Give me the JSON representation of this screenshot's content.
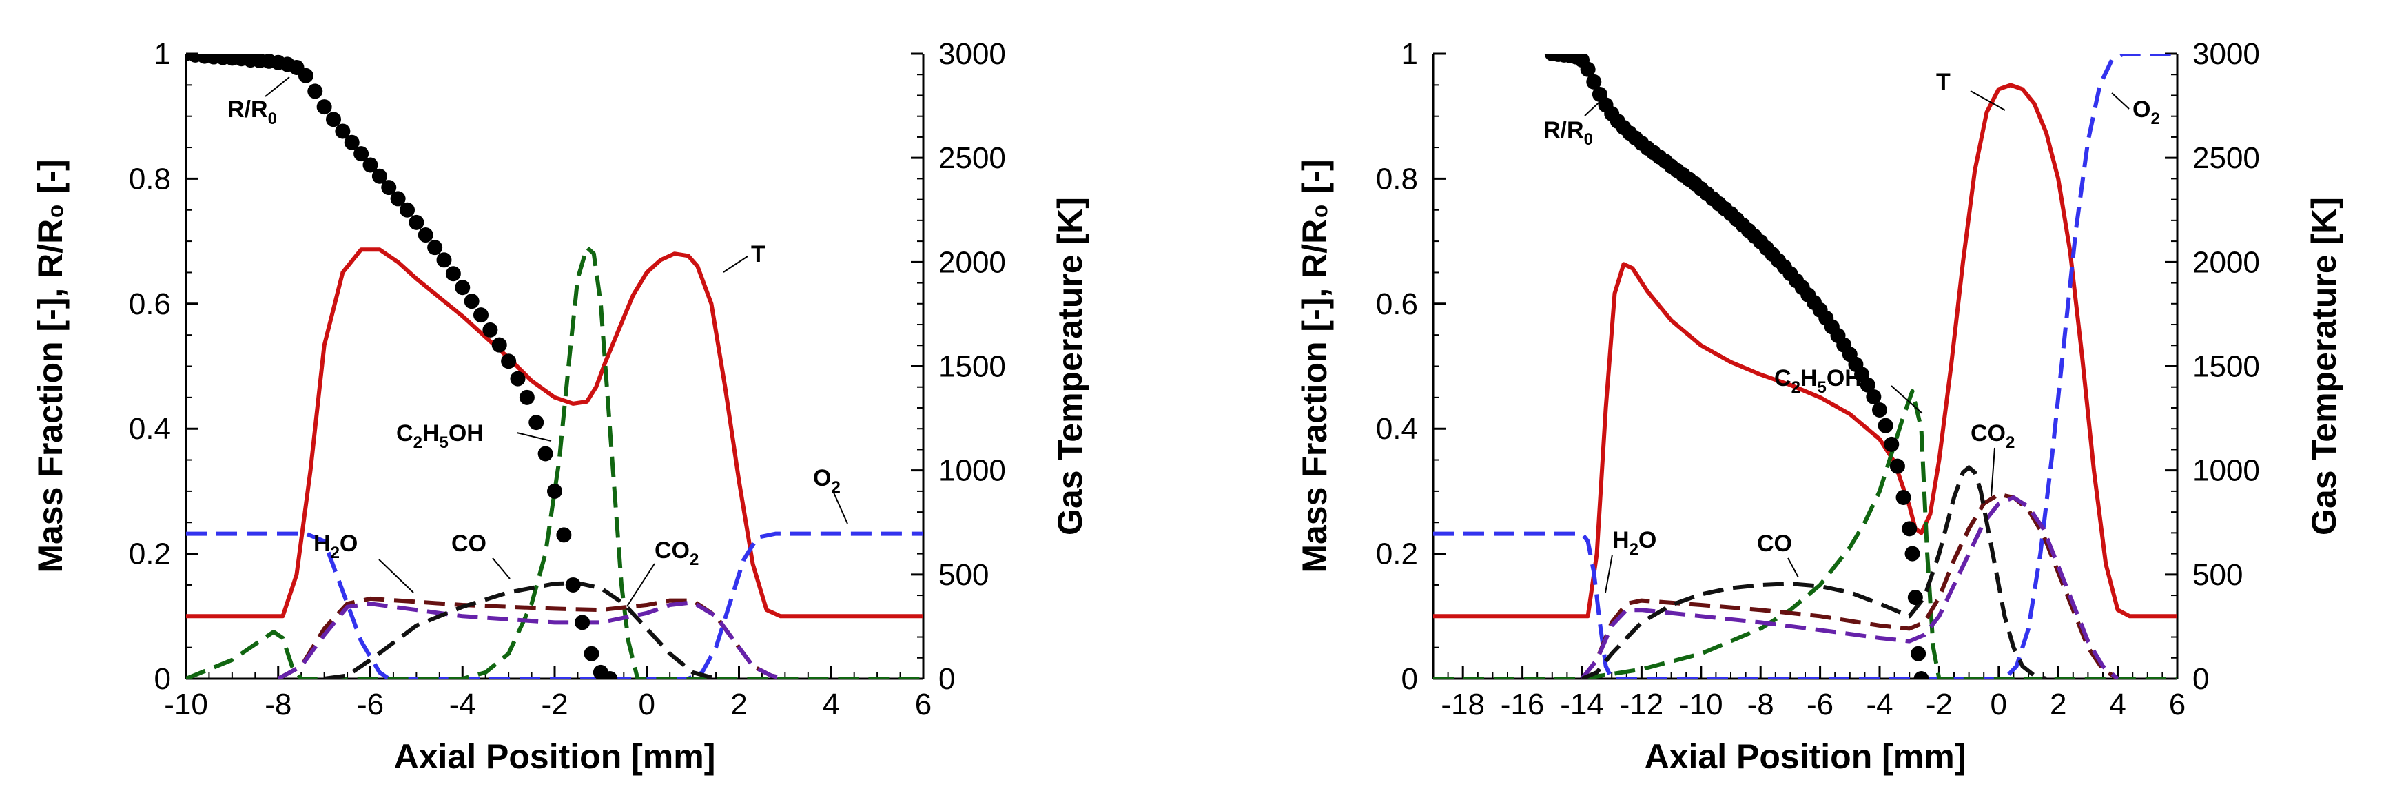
{
  "colors": {
    "T": "#cc1111",
    "O2": "#3333ee",
    "C2H5OH": "#116611",
    "H2O": "#661111",
    "CO": "#111111",
    "CO2": "#6622aa",
    "R": "#000000"
  },
  "chart_data": [
    {
      "type": "line",
      "xlabel": "Axial Position [mm]",
      "ylabel": "Mass Fraction [-], R/R₀ [-]",
      "y2label": "Gas Temperature [K]",
      "xlim": [
        -10,
        6
      ],
      "ylim": [
        0,
        1
      ],
      "y2lim": [
        0,
        3000
      ],
      "xticks": [
        "-10",
        "-8",
        "-6",
        "-4",
        "-2",
        "0",
        "2",
        "4",
        "6"
      ],
      "yticks": [
        "0",
        "0.2",
        "0.4",
        "0.6",
        "0.8",
        "1"
      ],
      "y2ticks": [
        "0",
        "500",
        "1000",
        "1500",
        "2000",
        "2500",
        "3000"
      ],
      "annotations": [
        {
          "id": "R",
          "base": "R/R",
          "sub": "0",
          "tail": ""
        },
        {
          "id": "T",
          "base": "T",
          "sub": "",
          "tail": ""
        },
        {
          "id": "C2H5OH",
          "base": "C",
          "sub": "2",
          "mid": "H",
          "sub2": "5",
          "tail": "OH"
        },
        {
          "id": "O2",
          "base": "O",
          "sub": "2",
          "tail": ""
        },
        {
          "id": "H2O",
          "base": "H",
          "sub": "2",
          "tail": "O"
        },
        {
          "id": "CO",
          "base": "CO",
          "sub": "",
          "tail": ""
        },
        {
          "id": "CO2",
          "base": "CO",
          "sub": "2",
          "tail": ""
        }
      ],
      "series": [
        {
          "name": "T",
          "axis": "y2",
          "style": "solid",
          "x": [
            -10,
            -7.9,
            -7.6,
            -7.3,
            -7.0,
            -6.6,
            -6.2,
            -5.8,
            -5.4,
            -5.0,
            -4.5,
            -4.0,
            -3.5,
            -3.0,
            -2.5,
            -2.0,
            -1.6,
            -1.3,
            -1.1,
            -0.9,
            -0.6,
            -0.3,
            0.0,
            0.3,
            0.6,
            0.9,
            1.1,
            1.4,
            1.7,
            2.0,
            2.3,
            2.6,
            2.9,
            3.2,
            6
          ],
          "y": [
            300,
            300,
            500,
            1000,
            1600,
            1950,
            2060,
            2060,
            2000,
            1920,
            1830,
            1740,
            1640,
            1540,
            1430,
            1350,
            1320,
            1330,
            1400,
            1520,
            1680,
            1840,
            1950,
            2010,
            2040,
            2030,
            1980,
            1800,
            1400,
            950,
            550,
            330,
            300,
            300,
            300
          ]
        },
        {
          "name": "O2",
          "axis": "y",
          "style": "dashed",
          "x": [
            -10,
            -7.4,
            -7.0,
            -6.6,
            -6.2,
            -5.8,
            -5.6,
            0.9,
            1.2,
            1.5,
            1.8,
            2.1,
            2.4,
            2.8,
            6
          ],
          "y": [
            0.232,
            0.232,
            0.22,
            0.14,
            0.06,
            0.01,
            0,
            0,
            0.01,
            0.05,
            0.12,
            0.19,
            0.226,
            0.232,
            0.232
          ]
        },
        {
          "name": "C2H5OH",
          "axis": "y",
          "style": "dashed",
          "x": [
            -10,
            -9.5,
            -9.0,
            -8.5,
            -8.1,
            -7.9,
            -7.7,
            -7.5,
            -4.0,
            -3.5,
            -3.0,
            -2.5,
            -2.2,
            -1.9,
            -1.7,
            -1.5,
            -1.3,
            -1.15,
            -1.0,
            -0.85,
            -0.7,
            -0.55,
            -0.4,
            -0.2,
            6
          ],
          "y": [
            0,
            0.015,
            0.03,
            0.055,
            0.075,
            0.065,
            0.02,
            0,
            0,
            0.01,
            0.04,
            0.12,
            0.2,
            0.35,
            0.5,
            0.64,
            0.69,
            0.68,
            0.6,
            0.45,
            0.3,
            0.15,
            0.06,
            0,
            0
          ]
        },
        {
          "name": "H2O",
          "axis": "y",
          "style": "dashed",
          "x": [
            -8.0,
            -7.5,
            -7.0,
            -6.5,
            -6.0,
            -5.0,
            -4.0,
            -3.0,
            -2.0,
            -1.0,
            0.0,
            0.5,
            1.0,
            1.5,
            2.0,
            2.3,
            2.7,
            3.0
          ],
          "y": [
            0,
            0.02,
            0.08,
            0.12,
            0.128,
            0.123,
            0.118,
            0.115,
            0.112,
            0.11,
            0.118,
            0.125,
            0.125,
            0.1,
            0.05,
            0.02,
            0.005,
            0
          ]
        },
        {
          "name": "CO2",
          "axis": "y",
          "style": "dashed",
          "x": [
            -8.0,
            -7.5,
            -7.0,
            -6.5,
            -6.0,
            -5.0,
            -4.0,
            -3.0,
            -2.0,
            -1.0,
            0.0,
            0.5,
            1.0,
            1.5,
            2.0,
            2.3,
            2.7,
            3.0
          ],
          "y": [
            0,
            0.02,
            0.07,
            0.115,
            0.12,
            0.11,
            0.1,
            0.095,
            0.09,
            0.09,
            0.105,
            0.118,
            0.122,
            0.1,
            0.05,
            0.02,
            0.005,
            0
          ]
        },
        {
          "name": "CO",
          "axis": "y",
          "style": "dashed",
          "x": [
            -7.0,
            -6.5,
            -6.0,
            -5.0,
            -4.0,
            -3.0,
            -2.0,
            -1.5,
            -1.0,
            -0.5,
            0.0,
            0.5,
            1.0,
            1.5
          ],
          "y": [
            0,
            0.005,
            0.03,
            0.085,
            0.115,
            0.138,
            0.152,
            0.153,
            0.145,
            0.12,
            0.08,
            0.04,
            0.01,
            0
          ]
        },
        {
          "name": "R/R0",
          "axis": "y",
          "style": "markers",
          "x": [
            -10.0,
            -9.8,
            -9.6,
            -9.4,
            -9.2,
            -9.0,
            -8.8,
            -8.6,
            -8.4,
            -8.2,
            -8.0,
            -7.8,
            -7.6,
            -7.4,
            -7.2,
            -7.0,
            -6.8,
            -6.6,
            -6.4,
            -6.2,
            -6.0,
            -5.8,
            -5.6,
            -5.4,
            -5.2,
            -5.0,
            -4.8,
            -4.6,
            -4.4,
            -4.2,
            -4.0,
            -3.8,
            -3.6,
            -3.4,
            -3.2,
            -3.0,
            -2.8,
            -2.6,
            -2.4,
            -2.2,
            -2.0,
            -1.8,
            -1.6,
            -1.4,
            -1.2,
            -1.0,
            -0.8
          ],
          "y": [
            1.0,
            0.998,
            0.996,
            0.995,
            0.994,
            0.993,
            0.992,
            0.99,
            0.989,
            0.988,
            0.986,
            0.983,
            0.978,
            0.965,
            0.94,
            0.915,
            0.895,
            0.876,
            0.858,
            0.84,
            0.822,
            0.804,
            0.786,
            0.768,
            0.75,
            0.73,
            0.71,
            0.69,
            0.67,
            0.648,
            0.626,
            0.604,
            0.582,
            0.558,
            0.534,
            0.508,
            0.48,
            0.45,
            0.41,
            0.36,
            0.3,
            0.23,
            0.15,
            0.09,
            0.04,
            0.01,
            0.0
          ]
        }
      ]
    },
    {
      "type": "line",
      "xlabel": "Axial Position [mm]",
      "ylabel": "Mass Fraction [-], R/R₀ [-]",
      "y2label": "Gas Temperature [K]",
      "xlim": [
        -19,
        6
      ],
      "ylim": [
        0,
        1
      ],
      "y2lim": [
        0,
        3000
      ],
      "xticks": [
        "-18",
        "-16",
        "-14",
        "-12",
        "-10",
        "-8",
        "-6",
        "-4",
        "-2",
        "0",
        "2",
        "4",
        "6"
      ],
      "yticks": [
        "0",
        "0.2",
        "0.4",
        "0.6",
        "0.8",
        "1"
      ],
      "y2ticks": [
        "0",
        "500",
        "1000",
        "1500",
        "2000",
        "2500",
        "3000"
      ],
      "annotations": [
        {
          "id": "R",
          "base": "R/R",
          "sub": "0",
          "tail": ""
        },
        {
          "id": "T",
          "base": "T",
          "sub": "",
          "tail": ""
        },
        {
          "id": "O2",
          "base": "O",
          "sub": "2",
          "tail": ""
        },
        {
          "id": "C2H5OH",
          "base": "C",
          "sub": "2",
          "mid": "H",
          "sub2": "5",
          "tail": "OH"
        },
        {
          "id": "CO2",
          "base": "CO",
          "sub": "2",
          "tail": ""
        },
        {
          "id": "H2O",
          "base": "H",
          "sub": "2",
          "tail": "O"
        },
        {
          "id": "CO",
          "base": "CO",
          "sub": "",
          "tail": ""
        }
      ],
      "series": [
        {
          "name": "T",
          "axis": "y2",
          "style": "solid",
          "x": [
            -19,
            -13.8,
            -13.5,
            -13.2,
            -12.9,
            -12.6,
            -12.3,
            -11.8,
            -11.0,
            -10.0,
            -9.0,
            -8.0,
            -7.0,
            -6.0,
            -5.0,
            -4.0,
            -3.5,
            -3.0,
            -2.8,
            -2.6,
            -2.3,
            -2.0,
            -1.6,
            -1.2,
            -0.8,
            -0.4,
            0.0,
            0.4,
            0.8,
            1.2,
            1.6,
            2.0,
            2.4,
            2.8,
            3.2,
            3.6,
            4.0,
            4.4,
            6
          ],
          "y": [
            300,
            300,
            600,
            1300,
            1850,
            1990,
            1970,
            1860,
            1720,
            1600,
            1520,
            1460,
            1410,
            1350,
            1270,
            1150,
            1040,
            830,
            720,
            700,
            790,
            1050,
            1500,
            2000,
            2440,
            2720,
            2830,
            2850,
            2830,
            2760,
            2620,
            2400,
            2050,
            1550,
            1000,
            550,
            330,
            300,
            300
          ]
        },
        {
          "name": "O2",
          "axis": "y",
          "style": "dashed",
          "x": [
            -19,
            -14.0,
            -13.8,
            -13.6,
            -13.4,
            -13.2,
            -13.0,
            0.2,
            0.6,
            1.0,
            1.4,
            1.8,
            2.2,
            2.6,
            3.0,
            3.4,
            3.8,
            4.2,
            6
          ],
          "y": [
            0.232,
            0.232,
            0.22,
            0.17,
            0.09,
            0.02,
            0,
            0,
            0.02,
            0.08,
            0.2,
            0.36,
            0.54,
            0.72,
            0.86,
            0.95,
            0.99,
            1.0,
            1.0
          ]
        },
        {
          "name": "C2H5OH",
          "axis": "y",
          "style": "dashed",
          "x": [
            -19,
            -14.0,
            -12.0,
            -10.0,
            -8.0,
            -7.0,
            -6.0,
            -5.0,
            -4.5,
            -4.0,
            -3.6,
            -3.2,
            -2.9,
            -2.6,
            -2.4,
            -2.2,
            -2.0,
            6
          ],
          "y": [
            0,
            0,
            0.015,
            0.04,
            0.08,
            0.11,
            0.15,
            0.21,
            0.25,
            0.3,
            0.36,
            0.42,
            0.46,
            0.4,
            0.2,
            0.05,
            0,
            0
          ]
        },
        {
          "name": "H2O",
          "axis": "y",
          "style": "dashed",
          "x": [
            -14.0,
            -13.5,
            -13.0,
            -12.5,
            -12.0,
            -10.0,
            -8.0,
            -6.0,
            -4.0,
            -3.0,
            -2.5,
            -2.0,
            -1.5,
            -1.0,
            -0.5,
            0.0,
            0.5,
            1.0,
            1.5,
            2.0,
            2.5,
            3.0,
            3.5,
            4.0
          ],
          "y": [
            0,
            0.03,
            0.09,
            0.12,
            0.125,
            0.118,
            0.11,
            0.1,
            0.085,
            0.08,
            0.09,
            0.13,
            0.19,
            0.24,
            0.28,
            0.295,
            0.29,
            0.27,
            0.23,
            0.17,
            0.11,
            0.05,
            0.015,
            0
          ]
        },
        {
          "name": "CO2",
          "axis": "y",
          "style": "dashed",
          "x": [
            -14.0,
            -13.5,
            -13.0,
            -12.5,
            -12.0,
            -10.0,
            -8.0,
            -6.0,
            -4.0,
            -3.0,
            -2.5,
            -2.0,
            -1.5,
            -1.0,
            -0.5,
            0.0,
            0.5,
            1.0,
            1.5,
            2.0,
            2.5,
            3.0,
            3.5,
            4.0
          ],
          "y": [
            0,
            0.03,
            0.085,
            0.11,
            0.11,
            0.1,
            0.09,
            0.078,
            0.065,
            0.06,
            0.07,
            0.1,
            0.15,
            0.2,
            0.25,
            0.28,
            0.29,
            0.275,
            0.24,
            0.18,
            0.12,
            0.06,
            0.02,
            0
          ]
        },
        {
          "name": "CO",
          "axis": "y",
          "style": "dashed",
          "x": [
            -14.0,
            -13.5,
            -13.0,
            -12.0,
            -11.0,
            -10.0,
            -9.0,
            -8.0,
            -7.0,
            -6.0,
            -5.0,
            -4.0,
            -3.5,
            -3.0,
            -2.5,
            -2.0,
            -1.5,
            -1.2,
            -1.0,
            -0.8,
            -0.6,
            -0.4,
            -0.2,
            0.0,
            0.2,
            0.5,
            0.8,
            1.2,
            1.6
          ],
          "y": [
            0,
            0.01,
            0.04,
            0.09,
            0.118,
            0.135,
            0.145,
            0.15,
            0.152,
            0.148,
            0.138,
            0.12,
            0.11,
            0.1,
            0.13,
            0.2,
            0.29,
            0.33,
            0.338,
            0.33,
            0.3,
            0.25,
            0.2,
            0.15,
            0.1,
            0.05,
            0.02,
            0.005,
            0
          ]
        },
        {
          "name": "R/R0",
          "axis": "y",
          "style": "markers",
          "x": [
            -15.0,
            -14.8,
            -14.6,
            -14.4,
            -14.2,
            -14.0,
            -13.8,
            -13.6,
            -13.4,
            -13.2,
            -13.0,
            -12.8,
            -12.6,
            -12.4,
            -12.2,
            -12.0,
            -11.8,
            -11.6,
            -11.4,
            -11.2,
            -11.0,
            -10.8,
            -10.6,
            -10.4,
            -10.2,
            -10.0,
            -9.8,
            -9.6,
            -9.4,
            -9.2,
            -9.0,
            -8.8,
            -8.6,
            -8.4,
            -8.2,
            -8.0,
            -7.8,
            -7.6,
            -7.4,
            -7.2,
            -7.0,
            -6.8,
            -6.6,
            -6.4,
            -6.2,
            -6.0,
            -5.8,
            -5.6,
            -5.4,
            -5.2,
            -5.0,
            -4.8,
            -4.6,
            -4.4,
            -4.2,
            -4.0,
            -3.8,
            -3.6,
            -3.4,
            -3.2,
            -3.0,
            -2.9,
            -2.8,
            -2.7,
            -2.6
          ],
          "y": [
            1.0,
            0.999,
            0.998,
            0.997,
            0.995,
            0.99,
            0.975,
            0.955,
            0.935,
            0.918,
            0.904,
            0.892,
            0.882,
            0.873,
            0.865,
            0.857,
            0.849,
            0.842,
            0.835,
            0.828,
            0.82,
            0.813,
            0.806,
            0.799,
            0.792,
            0.784,
            0.776,
            0.768,
            0.76,
            0.752,
            0.744,
            0.735,
            0.726,
            0.717,
            0.708,
            0.699,
            0.689,
            0.679,
            0.669,
            0.659,
            0.648,
            0.637,
            0.626,
            0.614,
            0.602,
            0.59,
            0.577,
            0.563,
            0.549,
            0.534,
            0.519,
            0.503,
            0.487,
            0.47,
            0.451,
            0.43,
            0.405,
            0.375,
            0.34,
            0.29,
            0.24,
            0.2,
            0.13,
            0.04,
            0.0
          ]
        }
      ]
    }
  ]
}
